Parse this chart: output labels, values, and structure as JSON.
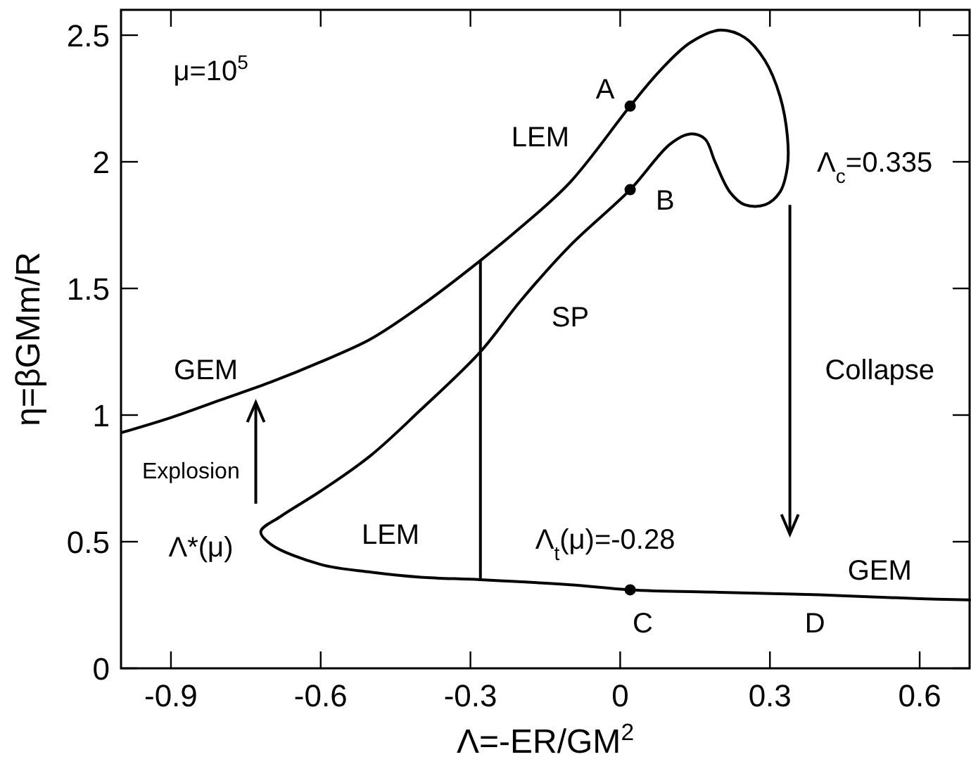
{
  "chart_data": {
    "type": "line",
    "xlabel": "Λ=-ER/GM$^{2}$",
    "ylabel": "η=βGMm/R",
    "xlim": [
      -1.0,
      0.7
    ],
    "ylim": [
      0,
      2.6
    ],
    "xticks": [
      -0.9,
      -0.6,
      -0.3,
      0,
      0.3,
      0.6
    ],
    "yticks": [
      0,
      0.5,
      1,
      1.5,
      2,
      2.5
    ],
    "grid": false,
    "line_style": "solid",
    "series": [
      {
        "color": "#000000",
        "x": [
          -1.0,
          -0.9,
          -0.8,
          -0.7,
          -0.6,
          -0.5,
          -0.4,
          -0.28,
          -0.2,
          -0.1,
          0.02,
          0.08,
          0.14,
          0.2,
          0.25,
          0.29,
          0.32,
          0.335,
          0.335,
          0.32,
          0.29,
          0.25,
          0.22,
          0.19,
          0.17,
          0.14,
          0.1,
          0.02,
          -0.1,
          -0.2,
          -0.28,
          -0.4,
          -0.5,
          -0.6,
          -0.68,
          -0.72,
          -0.7,
          -0.6,
          -0.5,
          -0.4,
          -0.28,
          -0.1,
          0.02,
          0.2,
          0.4,
          0.6,
          0.7
        ],
        "values": [
          0.93,
          0.99,
          1.06,
          1.13,
          1.21,
          1.3,
          1.43,
          1.61,
          1.74,
          1.92,
          2.22,
          2.36,
          2.47,
          2.52,
          2.49,
          2.4,
          2.26,
          2.1,
          1.98,
          1.88,
          1.83,
          1.83,
          1.88,
          2.0,
          2.09,
          2.11,
          2.07,
          1.89,
          1.67,
          1.45,
          1.25,
          1.02,
          0.84,
          0.7,
          0.6,
          0.54,
          0.49,
          0.41,
          0.38,
          0.36,
          0.35,
          0.33,
          0.31,
          0.3,
          0.29,
          0.275,
          0.27
        ]
      },
      {
        "type": "line",
        "color": "#000000",
        "x": [
          -0.28,
          -0.28
        ],
        "values": [
          0.35,
          1.61
        ]
      },
      {
        "type": "scatter",
        "color": "#000000",
        "marker": "circle",
        "x": [
          0.02,
          0.02,
          0.02
        ],
        "values": [
          2.22,
          1.89,
          0.31
        ]
      }
    ],
    "annotations": [
      "μ=10$^{5}$",
      "A",
      "LEM",
      "B",
      "Λ$_{c}$=0.335",
      "SP",
      "GEM",
      "Collapse",
      "Explosion",
      "Λ*(μ)",
      "LEM",
      "Λ$_{t}$(μ)=-0.28",
      "GEM",
      "C",
      "D"
    ]
  }
}
